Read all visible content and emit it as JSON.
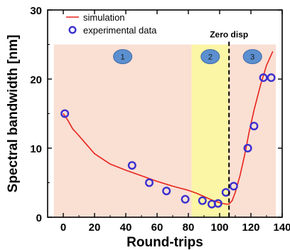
{
  "chart_data": {
    "type": "scatter",
    "xlabel": "Round-trips",
    "ylabel": "Spectral bandwidth [nm]",
    "xlim": [
      -10,
      140
    ],
    "ylim": [
      0,
      30
    ],
    "x_ticks": [
      0,
      20,
      40,
      60,
      80,
      100,
      120,
      140
    ],
    "y_ticks": [
      0,
      10,
      20,
      30
    ],
    "grid": false,
    "legend": {
      "placement": "top-left",
      "entries": [
        {
          "label": "simulation",
          "style": "line",
          "color": "#e8231b"
        },
        {
          "label": "experimental data",
          "style": "circle",
          "color": "#3a2fd0"
        }
      ]
    },
    "regions": [
      {
        "label": "1",
        "x_start": -6,
        "x_end": 82,
        "color": "#fadfd3"
      },
      {
        "label": "2",
        "x_start": 82,
        "x_end": 106,
        "color": "#fbf5a6"
      },
      {
        "label": "3",
        "x_start": 106,
        "x_end": 136,
        "color": "#fadfd3"
      }
    ],
    "region_y_top": 25,
    "annotation": {
      "text": "Zero disp",
      "x": 106
    },
    "series": [
      {
        "name": "simulation",
        "type": "line",
        "color": "#e8231b",
        "x": [
          0,
          3,
          6,
          10,
          15,
          20,
          30,
          40,
          50,
          60,
          70,
          80,
          85,
          90,
          95,
          100,
          104,
          106,
          108,
          110,
          113,
          116,
          119,
          122,
          126,
          130,
          134
        ],
        "y": [
          15.0,
          14.0,
          12.8,
          11.8,
          10.5,
          9.2,
          7.7,
          6.8,
          6.0,
          5.2,
          4.5,
          3.9,
          3.5,
          3.0,
          2.5,
          2.1,
          1.9,
          1.9,
          2.4,
          3.6,
          6.0,
          9.0,
          12.5,
          15.5,
          19.0,
          22.0,
          24.0
        ]
      },
      {
        "name": "experimental data",
        "type": "scatter",
        "color": "#3a2fd0",
        "x": [
          1,
          44,
          55,
          66,
          78,
          89,
          95,
          99,
          104,
          109,
          118,
          122,
          128,
          133
        ],
        "y": [
          15.0,
          7.5,
          5.0,
          3.8,
          2.6,
          2.4,
          1.9,
          2.0,
          3.6,
          4.5,
          10.0,
          13.2,
          20.2,
          20.2
        ]
      }
    ]
  }
}
